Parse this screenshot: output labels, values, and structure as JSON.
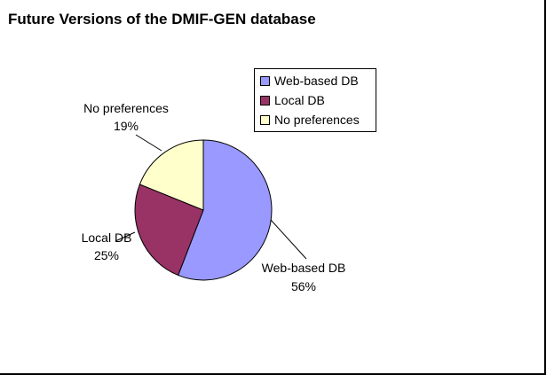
{
  "title": "Future Versions of the DMIF-GEN database",
  "chart_data": {
    "type": "pie",
    "slices": [
      {
        "label": "Web-based DB",
        "value": 56,
        "percent_label": "56%",
        "color": "#9999ff"
      },
      {
        "label": "Local DB",
        "value": 25,
        "percent_label": "25%",
        "color": "#993366"
      },
      {
        "label": "No preferences",
        "value": 19,
        "percent_label": "19%",
        "color": "#ffffcc"
      }
    ],
    "legend": {
      "placement": "top-right",
      "entries": [
        "Web-based DB",
        "Local DB",
        "No preferences"
      ]
    }
  }
}
